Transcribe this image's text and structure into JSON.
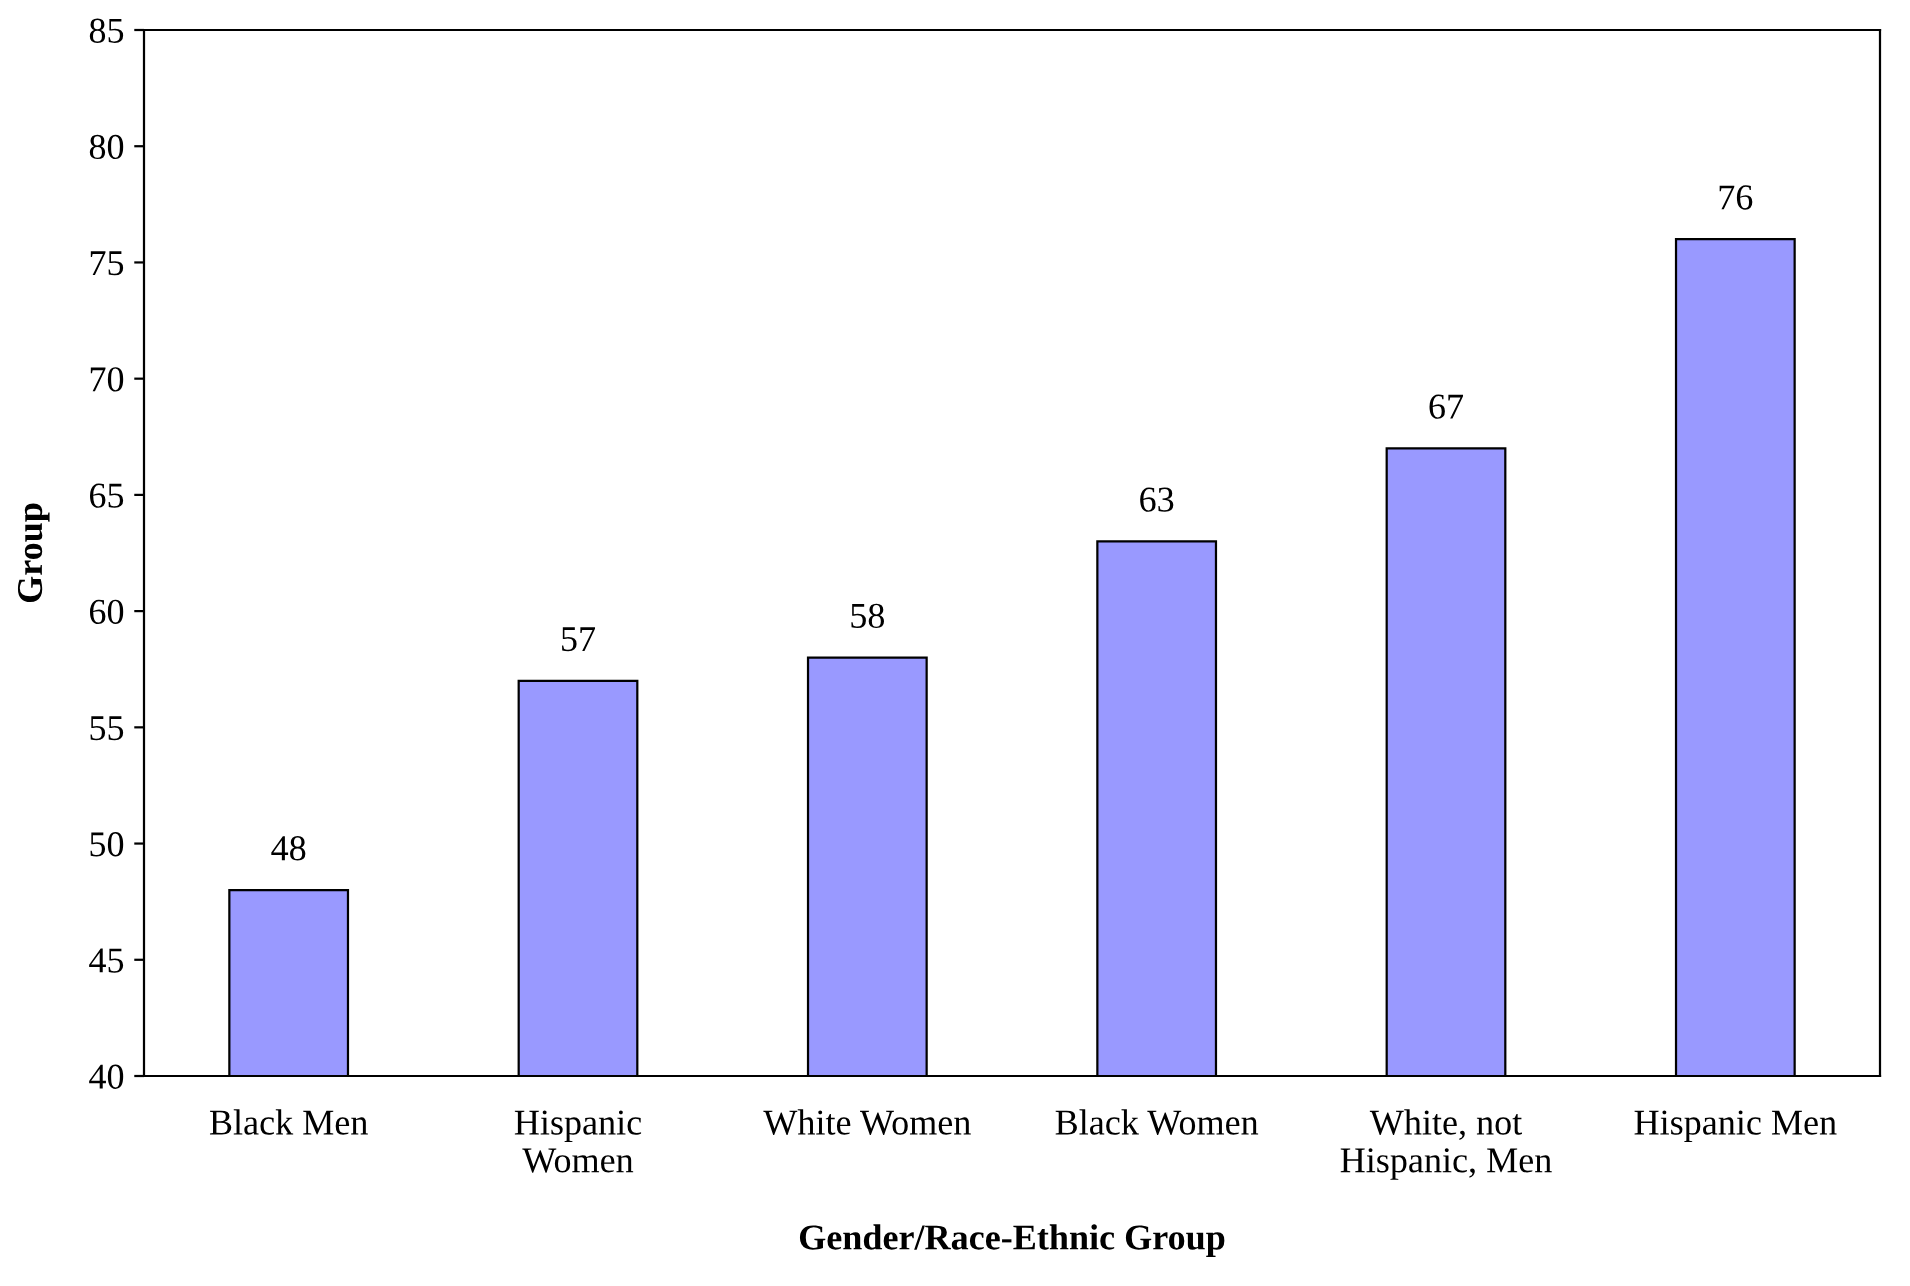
{
  "chart_data": {
    "type": "bar",
    "xlabel": "Gender/Race-Ethnic Group",
    "ylabel": "Group",
    "categories": [
      "Black Men",
      "Hispanic\nWomen",
      "White Women",
      "Black Women",
      "White, not\nHispanic, Men",
      "Hispanic Men"
    ],
    "values": [
      48,
      57,
      58,
      63,
      67,
      76
    ],
    "color": "#9999ff",
    "ylim": [
      40,
      85
    ],
    "yticks": [
      40,
      45,
      50,
      55,
      60,
      65,
      70,
      75,
      80,
      85
    ],
    "data_labels": true,
    "grid": false
  }
}
